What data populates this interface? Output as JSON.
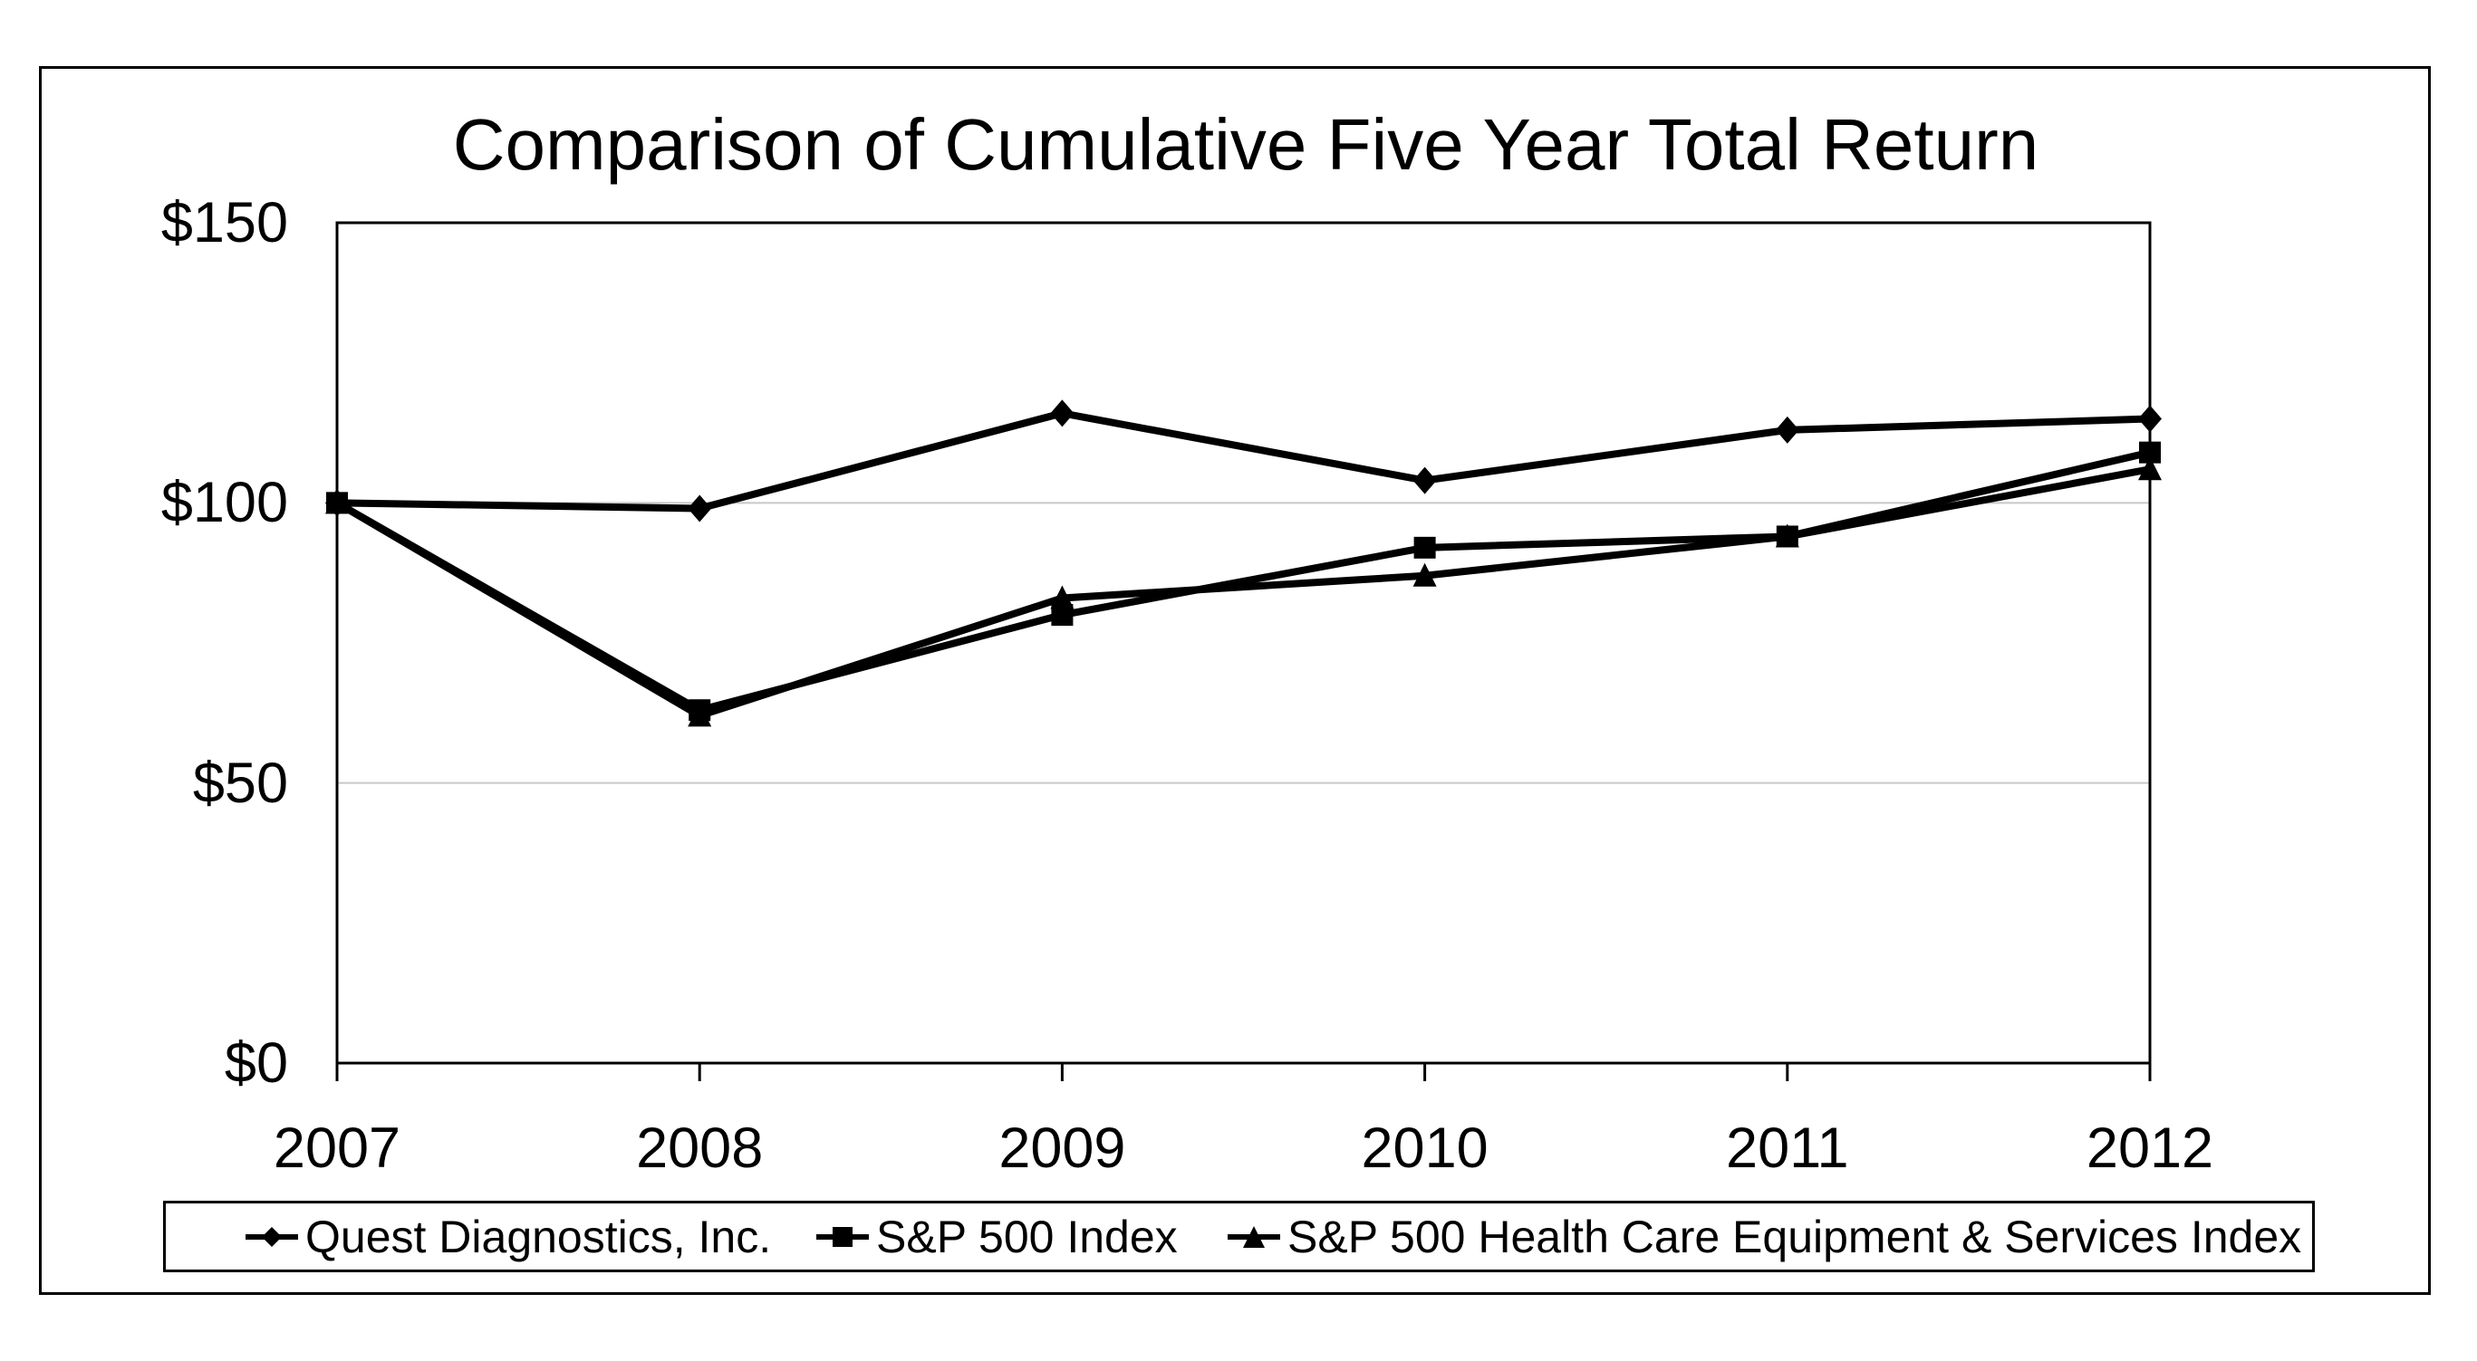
{
  "title": "Comparison of Cumulative Five Year Total Return",
  "colors": {
    "line": "#000000",
    "grid": "#c8c8c8",
    "text": "#000000",
    "background": "#ffffff"
  },
  "chart_data": {
    "type": "line",
    "title": "Comparison of Cumulative Five Year Total Return",
    "x_labels": [
      "2007",
      "2008",
      "2009",
      "2010",
      "2011",
      "2012"
    ],
    "y_tick_values": [
      0,
      50,
      100,
      150
    ],
    "y_tick_labels": [
      "$0",
      "$50",
      "$100",
      "$150"
    ],
    "ylim": [
      0,
      150
    ],
    "gridline_values": [
      50,
      100
    ],
    "grid": "horizontal-only",
    "legend_position": "bottom-boxed",
    "series": [
      {
        "name": "Quest Diagnostics, Inc.",
        "marker": "diamond",
        "values": [
          100,
          99,
          116,
          104,
          113,
          115
        ]
      },
      {
        "name": "S&P 500 Index",
        "marker": "square",
        "values": [
          100,
          63,
          80,
          92,
          94,
          109
        ]
      },
      {
        "name": "S&P 500 Health Care Equipment & Services Index",
        "marker": "triangle",
        "values": [
          100,
          62,
          83,
          87,
          94,
          106
        ]
      }
    ]
  }
}
